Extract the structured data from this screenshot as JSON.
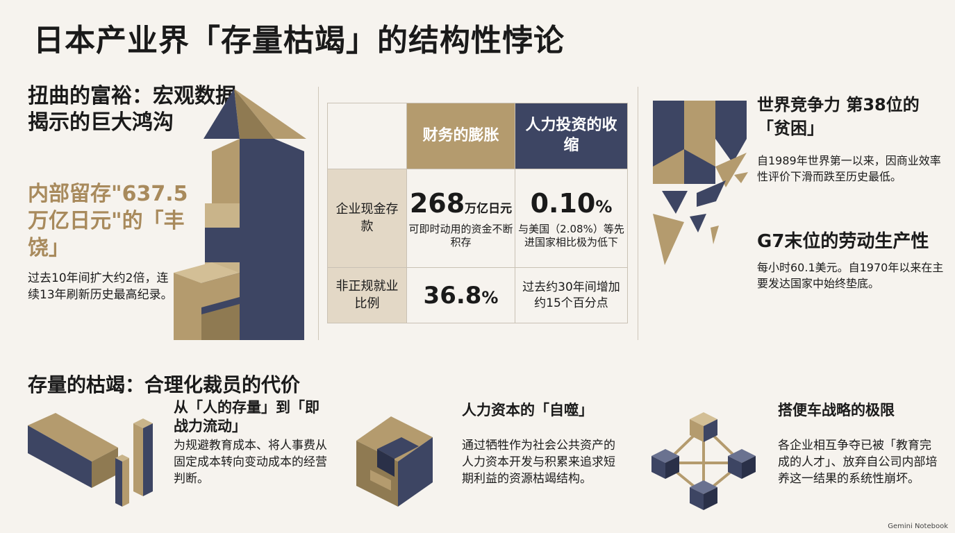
{
  "title": "日本产业界「存量枯竭」的结构性悖论",
  "left": {
    "heading": "扭曲的富裕：宏观数据揭示的巨大鸿沟",
    "highlight": "内部留存\"637.5万亿日元\"的「丰饶」",
    "note": "过去10年间扩大约2倍，连续13年刷新历史最高纪录。"
  },
  "matrix": {
    "col1": "财务的膨胀",
    "col2": "人力投资的收缩",
    "rows": [
      {
        "label": "企业现金存款",
        "c1_value": "268",
        "c1_unit": "万亿日元",
        "c1_sub": "可即时动用的资金不断积存",
        "c2_value": "0.10",
        "c2_unit": "%",
        "c2_sub": "与美国（2.08%）等先进国家相比极为低下"
      },
      {
        "label": "非正规就业比例",
        "c1_value": "36.8",
        "c1_unit": "%",
        "c2_text": "过去约30年间增加约15个百分点"
      }
    ]
  },
  "right": {
    "h1": "世界竞争力 第38位的「贫困」",
    "p1": "自1989年世界第一以来，因商业效率性评价下滑而跌至历史最低。",
    "h2": "G7末位的劳动生产性",
    "p2": "每小时60.1美元。自1970年以来在主要发达国家中始终垫底。"
  },
  "section2": {
    "heading": "存量的枯竭：合理化裁员的代价",
    "blocks": [
      {
        "title": "从「人的存量」到「即战力流动」",
        "text": "为规避教育成本、将人事费从固定成本转向变动成本的经营判断。"
      },
      {
        "title": "人力资本的「自噬」",
        "text": "通过牺牲作为社会公共资产的人力资本开发与积累来追求短期利益的资源枯竭结构。"
      },
      {
        "title": "搭便车战略的极限",
        "text": "各企业相互争夺已被「教育完成的人才」、放弃自公司内部培养这一结果的系统性崩坏。"
      }
    ]
  },
  "watermark": "Gemini Notebook",
  "colors": {
    "gold": "#b49b6e",
    "navy": "#3d4563",
    "cream": "#f6f3ee",
    "beige": "#e3d8c6"
  }
}
